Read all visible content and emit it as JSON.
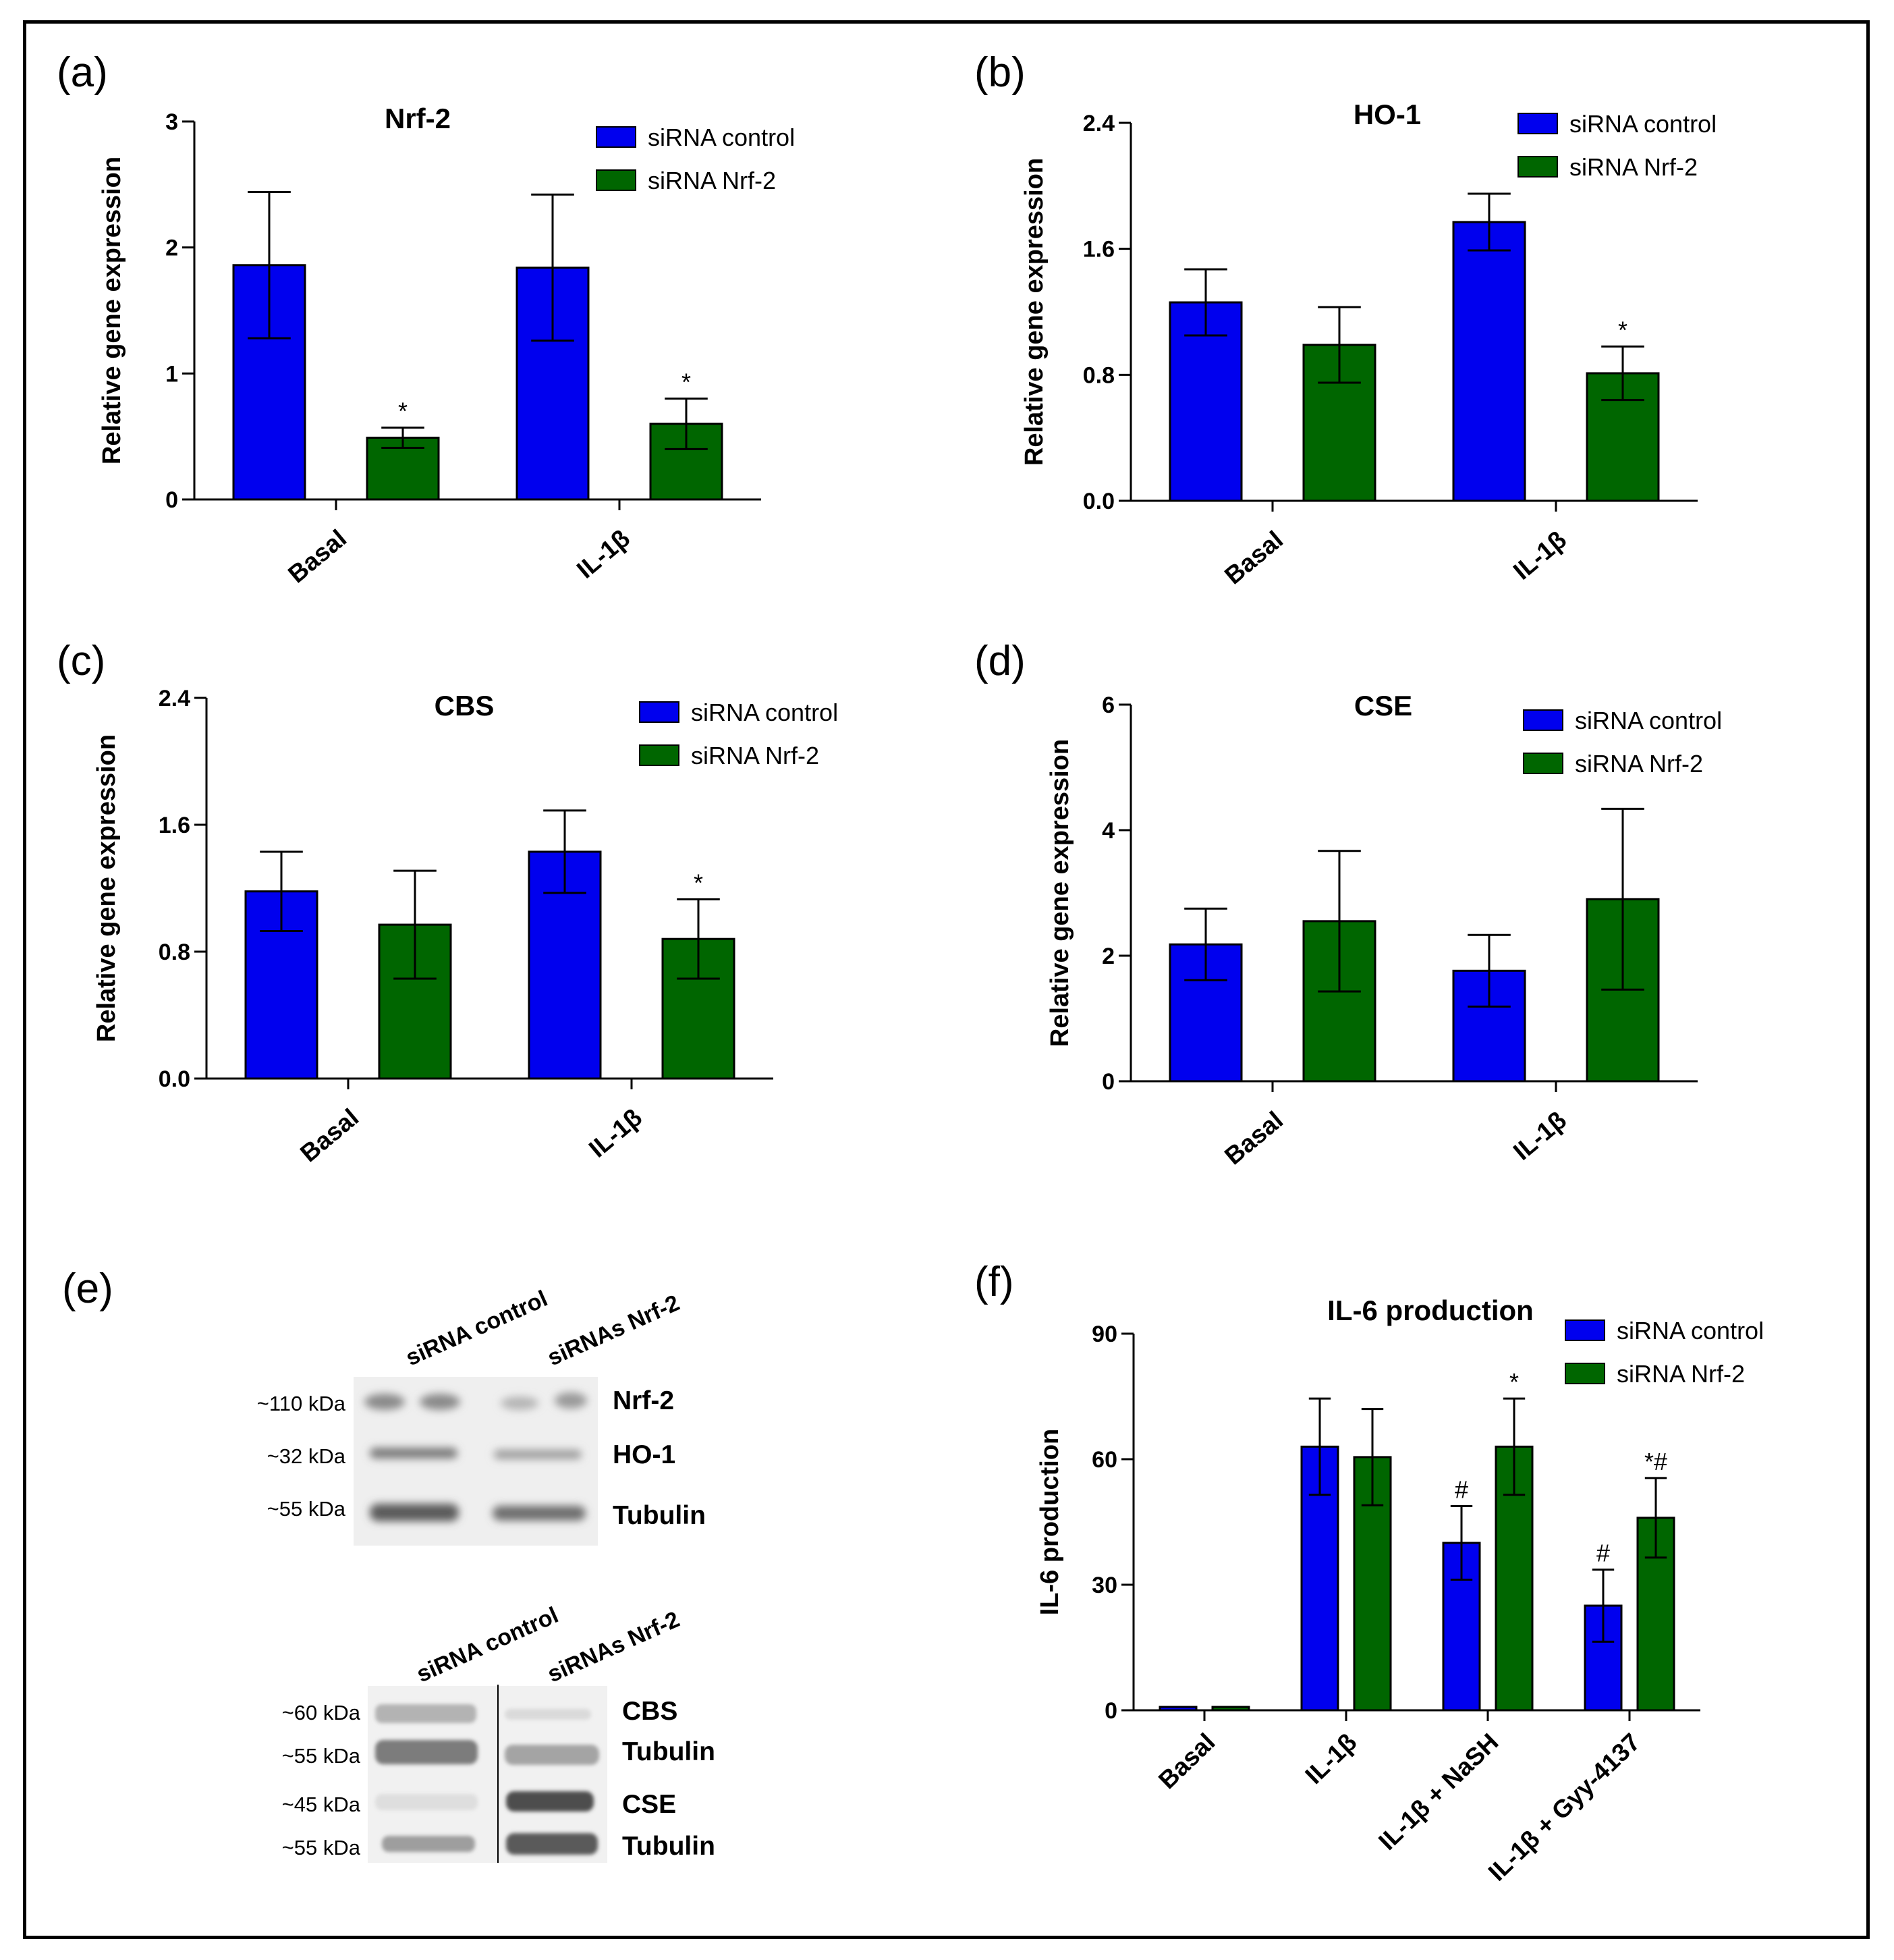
{
  "colors": {
    "control": "#0000ee",
    "nrf2": "#006600",
    "axis": "#000000"
  },
  "legend": [
    "siRNA control",
    "siRNA Nrf-2"
  ],
  "chart_data": [
    {
      "id": "a",
      "panel_label": "(a)",
      "type": "bar",
      "title": "Nrf-2",
      "ylabel": "Relative gene expression",
      "categories": [
        "Basal",
        "IL-1β"
      ],
      "ylim": [
        0,
        3
      ],
      "yticks": [
        "0",
        "1",
        "2",
        "3"
      ],
      "series": [
        {
          "name": "siRNA control",
          "values": [
            1.86,
            1.84
          ],
          "errors": [
            0.58,
            0.58
          ],
          "sig": [
            "",
            ""
          ]
        },
        {
          "name": "siRNA Nrf-2",
          "values": [
            0.49,
            0.6
          ],
          "errors": [
            0.08,
            0.2
          ],
          "sig": [
            "*",
            "*"
          ]
        }
      ]
    },
    {
      "id": "b",
      "panel_label": "(b)",
      "type": "bar",
      "title": "HO-1",
      "ylabel": "Relative gene expression",
      "categories": [
        "Basal",
        "IL-1β"
      ],
      "ylim": [
        0,
        2.4
      ],
      "yticks": [
        "0.0",
        "0.8",
        "1.6",
        "2.4"
      ],
      "series": [
        {
          "name": "siRNA control",
          "values": [
            1.26,
            1.77
          ],
          "errors": [
            0.21,
            0.18
          ],
          "sig": [
            "",
            ""
          ]
        },
        {
          "name": "siRNA Nrf-2",
          "values": [
            0.99,
            0.81
          ],
          "errors": [
            0.24,
            0.17
          ],
          "sig": [
            "",
            "*"
          ]
        }
      ]
    },
    {
      "id": "c",
      "panel_label": "(c)",
      "type": "bar",
      "title": "CBS",
      "ylabel": "Relative gene expression",
      "categories": [
        "Basal",
        "IL-1β"
      ],
      "ylim": [
        0,
        2.4
      ],
      "yticks": [
        "0.0",
        "0.8",
        "1.6",
        "2.4"
      ],
      "series": [
        {
          "name": "siRNA control",
          "values": [
            1.18,
            1.43
          ],
          "errors": [
            0.25,
            0.26
          ],
          "sig": [
            "",
            ""
          ]
        },
        {
          "name": "siRNA Nrf-2",
          "values": [
            0.97,
            0.88
          ],
          "errors": [
            0.34,
            0.25
          ],
          "sig": [
            "",
            "*"
          ]
        }
      ]
    },
    {
      "id": "d",
      "panel_label": "(d)",
      "type": "bar",
      "title": "CSE",
      "ylabel": "Relative gene expression",
      "categories": [
        "Basal",
        "IL-1β"
      ],
      "ylim": [
        0,
        6
      ],
      "yticks": [
        "0",
        "2",
        "4",
        "6"
      ],
      "series": [
        {
          "name": "siRNA control",
          "values": [
            2.18,
            1.76
          ],
          "errors": [
            0.57,
            0.57
          ],
          "sig": [
            "",
            ""
          ]
        },
        {
          "name": "siRNA Nrf-2",
          "values": [
            2.55,
            2.9
          ],
          "errors": [
            1.12,
            1.44
          ],
          "sig": [
            "",
            ""
          ]
        }
      ]
    },
    {
      "id": "f",
      "panel_label": "(f)",
      "type": "bar",
      "title": "IL-6 production",
      "ylabel": "IL-6 production",
      "categories": [
        "Basal",
        "IL-1β",
        "IL-1β + NaSH",
        "IL-1β + Gyy-4137"
      ],
      "ylim": [
        0,
        90
      ],
      "yticks": [
        "0",
        "30",
        "60",
        "90"
      ],
      "series": [
        {
          "name": "siRNA control",
          "values": [
            0.8,
            63,
            40,
            25
          ],
          "errors": [
            0,
            11.5,
            8.8,
            8.6
          ],
          "sig": [
            "",
            "",
            "#",
            "#"
          ]
        },
        {
          "name": "siRNA Nrf-2",
          "values": [
            0.8,
            60.5,
            63,
            46
          ],
          "errors": [
            0,
            11.5,
            11.5,
            9.5
          ],
          "sig": [
            "",
            "",
            "*",
            "*#"
          ]
        }
      ]
    }
  ],
  "western_blot": {
    "panel_label": "(e)",
    "blot1": {
      "columns": [
        "siRNA control",
        "siRNAs Nrf-2"
      ],
      "rows": [
        {
          "kda": "~110 kDa",
          "protein": "Nrf-2"
        },
        {
          "kda": "~32 kDa",
          "protein": "HO-1"
        },
        {
          "kda": "~55 kDa",
          "protein": "Tubulin"
        }
      ]
    },
    "blot2": {
      "columns": [
        "siRNA control",
        "siRNAs Nrf-2"
      ],
      "rows": [
        {
          "kda": "~60 kDa",
          "protein": "CBS"
        },
        {
          "kda": "~55 kDa",
          "protein": "Tubulin"
        },
        {
          "kda": "~45 kDa",
          "protein": "CSE"
        },
        {
          "kda": "~55 kDa",
          "protein": "Tubulin"
        }
      ]
    }
  }
}
